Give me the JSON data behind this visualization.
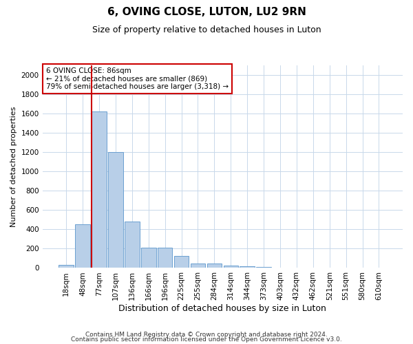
{
  "title1": "6, OVING CLOSE, LUTON, LU2 9RN",
  "title2": "Size of property relative to detached houses in Luton",
  "xlabel": "Distribution of detached houses by size in Luton",
  "ylabel": "Number of detached properties",
  "categories": [
    "18sqm",
    "48sqm",
    "77sqm",
    "107sqm",
    "136sqm",
    "166sqm",
    "196sqm",
    "225sqm",
    "255sqm",
    "284sqm",
    "314sqm",
    "344sqm",
    "373sqm",
    "403sqm",
    "432sqm",
    "462sqm",
    "521sqm",
    "551sqm",
    "580sqm",
    "610sqm"
  ],
  "values": [
    30,
    450,
    1620,
    1200,
    480,
    210,
    210,
    125,
    45,
    45,
    25,
    18,
    8,
    2,
    1,
    1,
    0,
    0,
    0,
    0
  ],
  "bar_color": "#b8cfe8",
  "bar_edge_color": "#6a9fd0",
  "vline_color": "#cc0000",
  "vline_index": 2,
  "annotation_line1": "6 OVING CLOSE: 86sqm",
  "annotation_line2": "← 21% of detached houses are smaller (869)",
  "annotation_line3": "79% of semi-detached houses are larger (3,318) →",
  "annotation_box_color": "#cc0000",
  "ylim": [
    0,
    2100
  ],
  "yticks": [
    0,
    200,
    400,
    600,
    800,
    1000,
    1200,
    1400,
    1600,
    1800,
    2000
  ],
  "footer1": "Contains HM Land Registry data © Crown copyright and database right 2024.",
  "footer2": "Contains public sector information licensed under the Open Government Licence v3.0.",
  "bg_color": "#ffffff",
  "grid_color": "#c8d8ea",
  "title1_fontsize": 11,
  "title2_fontsize": 9,
  "ylabel_fontsize": 8,
  "xlabel_fontsize": 9,
  "tick_fontsize": 7.5,
  "annot_fontsize": 7.5,
  "footer_fontsize": 6.5
}
